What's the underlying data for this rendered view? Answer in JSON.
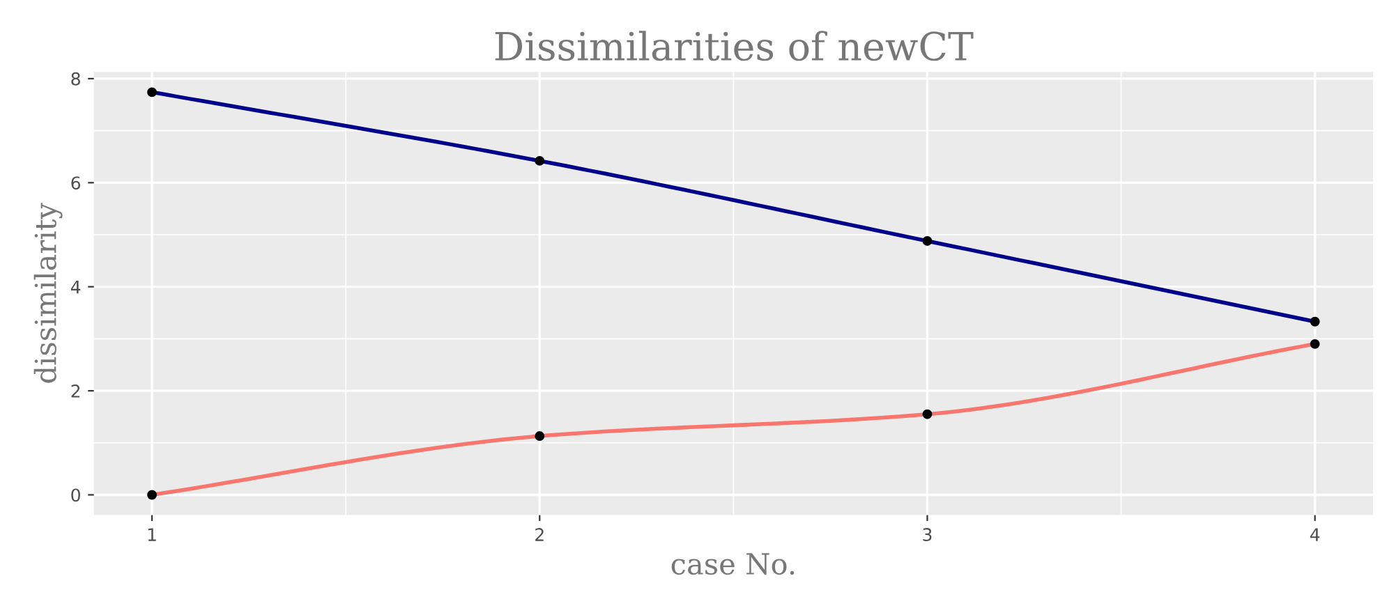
{
  "chart_data": {
    "type": "line",
    "title": "Dissimilarities of newCT",
    "xlabel": "case No.",
    "ylabel": "dissimilarity",
    "x": [
      1,
      2,
      3,
      4
    ],
    "series": [
      {
        "color": "#00008b",
        "values": [
          7.74,
          6.42,
          4.88,
          3.33
        ]
      },
      {
        "color": "#f8766d",
        "values": [
          0,
          1.13,
          1.55,
          2.9
        ]
      }
    ],
    "xlim": [
      0.85,
      4.15
    ],
    "xticks": [
      1,
      2,
      3,
      4
    ],
    "ylim": [
      -0.39,
      8.13
    ],
    "yticks": [
      0,
      2,
      4,
      6,
      8
    ],
    "grid": true,
    "marker": "circle",
    "line_style": "solid"
  }
}
